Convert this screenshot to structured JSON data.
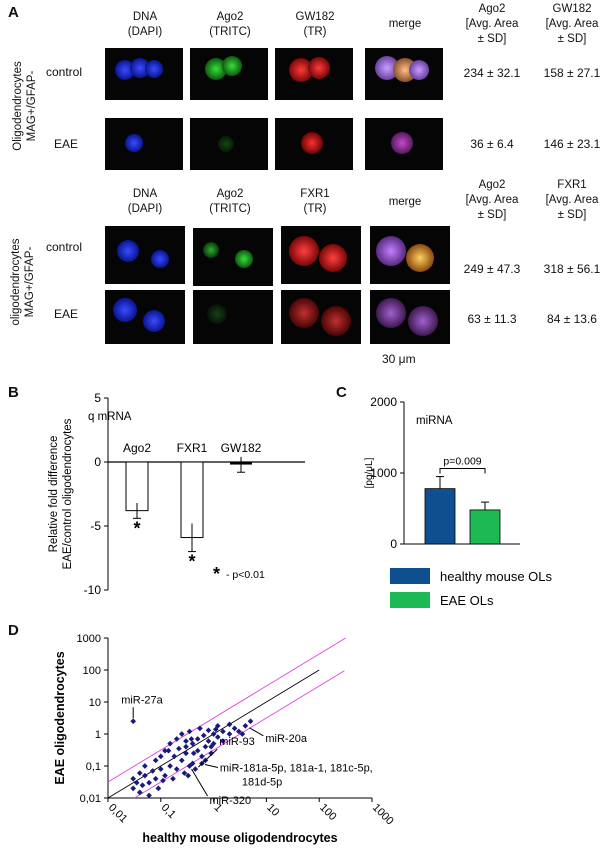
{
  "panelA": {
    "label": "A",
    "top": {
      "group_label": [
        "Oligodendrocytes",
        "MAG+/GFAP-"
      ],
      "stains": [
        {
          "line1": "DNA",
          "line2": "(DAPI)"
        },
        {
          "line1": "Ago2",
          "line2": "(TRITC)"
        },
        {
          "line1": "GW182",
          "line2": "(TR)"
        },
        {
          "line1": "merge",
          "line2": ""
        }
      ],
      "val_headers": [
        {
          "line1": "Ago2",
          "line2": "[Avg. Area",
          "line3": "± SD]"
        },
        {
          "line1": "GW182",
          "line2": "[Avg. Area",
          "line3": "± SD]"
        }
      ],
      "rows": [
        {
          "label": "control",
          "v1": "234 ± 32.1",
          "v2": "158 ± 27.1"
        },
        {
          "label": "EAE",
          "v1": "36 ± 6.4",
          "v2": "146 ± 23.1"
        }
      ]
    },
    "bottom": {
      "group_label": [
        "oligodendrocytes",
        "MAG+/GFAP-"
      ],
      "stains": [
        {
          "line1": "DNA",
          "line2": "(DAPI)"
        },
        {
          "line1": "Ago2",
          "line2": "(TRITC)"
        },
        {
          "line1": "FXR1",
          "line2": "(TR)"
        },
        {
          "line1": "merge",
          "line2": ""
        }
      ],
      "val_headers": [
        {
          "line1": "Ago2",
          "line2": "[Avg. Area",
          "line3": "± SD]"
        },
        {
          "line1": "FXR1",
          "line2": "[Avg. Area",
          "line3": "± SD]"
        }
      ],
      "rows": [
        {
          "label": "control",
          "v1": "249 ± 47.3",
          "v2": "318 ± 56.1"
        },
        {
          "label": "EAE",
          "v1": "63 ± 11.3",
          "v2": "84 ± 13.6"
        }
      ]
    },
    "scale_bar": "30 μm"
  },
  "chart_data": [
    {
      "panel": "B",
      "type": "bar",
      "title": "q mRNA",
      "ylabel": "Relative fold difference EAE/control oligodendrocytes",
      "ylabel_lines": [
        "Relative fold difference",
        "EAE/control oligodendrocytes"
      ],
      "ylim": [
        -10,
        5
      ],
      "yticks": [
        -10,
        -5,
        0,
        5
      ],
      "categories": [
        "Ago2",
        "FXR1",
        "GW182"
      ],
      "values": [
        -3.8,
        -5.9,
        -0.2
      ],
      "errors": [
        0.6,
        1.1,
        0.6
      ],
      "significant": [
        true,
        true,
        false
      ],
      "sig_marker": "*",
      "note": "- p<0.01",
      "bar_color": "#ffffff"
    },
    {
      "panel": "C",
      "type": "bar",
      "title": "miRNA",
      "ylabel": "[pg/μL]",
      "ylim": [
        0,
        2000
      ],
      "yticks": [
        0,
        1000,
        2000
      ],
      "categories": [
        "healthy mouse OLs",
        "EAE OLs"
      ],
      "values": [
        780,
        480
      ],
      "errors": [
        170,
        110
      ],
      "annotation": "p=0.009",
      "colors": [
        "#0d4f8f",
        "#1db954"
      ],
      "legend": [
        {
          "label": "healthy mouse OLs",
          "color": "#0d4f8f"
        },
        {
          "label": "EAE OLs",
          "color": "#1db954"
        }
      ]
    },
    {
      "panel": "D",
      "type": "scatter",
      "xscale": "log",
      "yscale": "log",
      "xlim": [
        0.01,
        1000
      ],
      "ylim": [
        0.01,
        1000
      ],
      "xticks": [
        "0,01",
        "0,1",
        "1",
        "10",
        "100",
        "1000"
      ],
      "yticks": [
        "0,01",
        "0,1",
        "1",
        "10",
        "100",
        "1000"
      ],
      "xlabel": "healthy mouse oligodendrocytes",
      "ylabel": "EAE oligodendrocytes",
      "point_color": "#1a1a7e",
      "lines": [
        {
          "name": "identity",
          "factor": 1,
          "color": "#000000"
        },
        {
          "name": "upper",
          "factor": 3.16,
          "color": "#e040e0"
        },
        {
          "name": "lower",
          "factor": 0.316,
          "color": "#e040e0"
        }
      ],
      "points": [
        [
          0.03,
          2.5
        ],
        [
          0.03,
          0.02
        ],
        [
          0.03,
          0.04
        ],
        [
          0.035,
          0.03
        ],
        [
          0.04,
          0.015
        ],
        [
          0.04,
          0.06
        ],
        [
          0.045,
          0.025
        ],
        [
          0.05,
          0.05
        ],
        [
          0.05,
          0.1
        ],
        [
          0.06,
          0.03
        ],
        [
          0.07,
          0.07
        ],
        [
          0.08,
          0.04
        ],
        [
          0.08,
          0.15
        ],
        [
          0.1,
          0.08
        ],
        [
          0.1,
          0.2
        ],
        [
          0.12,
          0.05
        ],
        [
          0.12,
          0.3
        ],
        [
          0.15,
          0.1
        ],
        [
          0.15,
          0.5
        ],
        [
          0.18,
          0.2
        ],
        [
          0.2,
          0.08
        ],
        [
          0.2,
          0.7
        ],
        [
          0.25,
          0.15
        ],
        [
          0.25,
          1.0
        ],
        [
          0.3,
          0.25
        ],
        [
          0.3,
          0.4
        ],
        [
          0.35,
          0.1
        ],
        [
          0.35,
          1.2
        ],
        [
          0.4,
          0.5
        ],
        [
          0.4,
          0.12
        ],
        [
          0.45,
          0.08
        ],
        [
          0.5,
          0.3
        ],
        [
          0.5,
          0.7
        ],
        [
          0.55,
          1.5
        ],
        [
          0.6,
          0.2
        ],
        [
          0.6,
          0.12
        ],
        [
          0.65,
          0.9
        ],
        [
          0.7,
          0.4
        ],
        [
          0.7,
          0.15
        ],
        [
          0.8,
          0.6
        ],
        [
          0.8,
          1.3
        ],
        [
          0.9,
          0.25
        ],
        [
          1.0,
          1.0
        ],
        [
          1.0,
          0.5
        ],
        [
          1.2,
          0.8
        ],
        [
          1.2,
          1.8
        ],
        [
          1.5,
          1.2
        ],
        [
          1.5,
          0.6
        ],
        [
          2.0,
          2.0
        ],
        [
          2.0,
          1.0
        ],
        [
          2.5,
          1.5
        ],
        [
          3.0,
          1.2
        ],
        [
          3.5,
          1.0
        ],
        [
          4.0,
          1.8
        ],
        [
          5.0,
          2.5
        ],
        [
          0.06,
          0.012
        ],
        [
          0.09,
          0.02
        ],
        [
          0.11,
          0.035
        ],
        [
          0.14,
          0.3
        ],
        [
          0.17,
          0.04
        ],
        [
          0.22,
          0.35
        ],
        [
          0.28,
          0.06
        ],
        [
          0.33,
          0.05
        ],
        [
          0.38,
          0.7
        ],
        [
          0.42,
          0.25
        ],
        [
          0.3,
          0.6
        ],
        [
          0.9,
          0.4
        ],
        [
          1.1,
          1.4
        ]
      ],
      "annotations": [
        {
          "text": "miR-27a",
          "x": 0.03,
          "y": 2.5
        },
        {
          "text": "miR-20a",
          "x": 4.0,
          "y": 1.8
        },
        {
          "text": "miR-93",
          "x": 0.45,
          "y": 0.08
        },
        {
          "text": "miR-181a-5p, 181a-1, 181c-5p,",
          "x": 0.6,
          "y": 0.12
        },
        {
          "text": "181d-5p",
          "x": 0.6,
          "y": 0.12
        },
        {
          "text": "miR-320",
          "x": 0.35,
          "y": 0.1
        }
      ]
    }
  ],
  "labels": {
    "B": "B",
    "C": "C",
    "D": "D"
  }
}
